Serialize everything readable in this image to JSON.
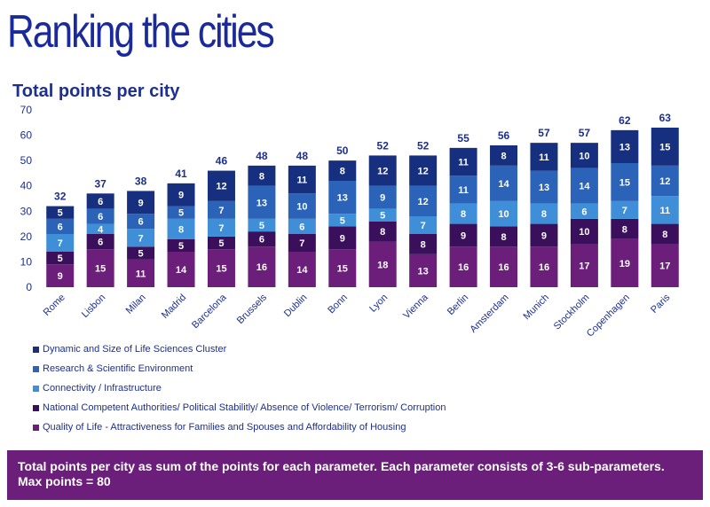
{
  "page": {
    "title": "Ranking the cities"
  },
  "chart_data": {
    "type": "bar",
    "stacked": true,
    "title": "Total points per city",
    "xlabel": "",
    "ylabel": "",
    "ylim": [
      0,
      70
    ],
    "yticks": [
      0,
      10,
      20,
      30,
      40,
      50,
      60,
      70
    ],
    "grid": false,
    "legend_position": "bottom-left",
    "categories": [
      "Rome",
      "Lisbon",
      "Milan",
      "Madrid",
      "Barcelona",
      "Brussels",
      "Dublin",
      "Bonn",
      "Lyon",
      "Vienna",
      "Berlin",
      "Amsterdam",
      "Munich",
      "Stockholm",
      "Copenhagen",
      "Paris"
    ],
    "totals": [
      32,
      37,
      38,
      41,
      46,
      48,
      48,
      50,
      52,
      52,
      55,
      56,
      57,
      57,
      62,
      63
    ],
    "series": [
      {
        "name": "Quality of Life - Attractiveness for Families and Spouses and Affordability of Housing",
        "color": "#6b1f7a",
        "values": [
          9,
          15,
          11,
          14,
          15,
          16,
          14,
          15,
          18,
          13,
          16,
          16,
          16,
          17,
          19,
          17
        ]
      },
      {
        "name": "National Competent Authorities/ Political Stabilitly/ Absence of Violence/ Terrorism/ Corruption",
        "color": "#3a0f5c",
        "values": [
          5,
          6,
          5,
          5,
          5,
          6,
          7,
          9,
          8,
          8,
          9,
          8,
          9,
          10,
          8,
          8
        ]
      },
      {
        "name": "Connectivity / Infrastructure",
        "color": "#3f8fd8",
        "values": [
          7,
          4,
          7,
          8,
          7,
          5,
          6,
          5,
          5,
          7,
          8,
          10,
          8,
          6,
          7,
          11
        ]
      },
      {
        "name": "Research & Scientific Environment",
        "color": "#2a63b8",
        "values": [
          6,
          6,
          6,
          5,
          7,
          13,
          10,
          13,
          9,
          12,
          11,
          14,
          13,
          14,
          15,
          12
        ]
      },
      {
        "name": "Dynamic and Size of Life Sciences Cluster",
        "color": "#16307f",
        "values": [
          5,
          6,
          9,
          9,
          12,
          8,
          11,
          8,
          12,
          12,
          11,
          8,
          11,
          10,
          13,
          15
        ]
      }
    ]
  },
  "legend": {
    "items": [
      {
        "label": "Dynamic and Size of Life Sciences Cluster",
        "color": "#16307f"
      },
      {
        "label": "Research & Scientific Environment",
        "color": "#2a63b8"
      },
      {
        "label": "Connectivity / Infrastructure",
        "color": "#3f8fd8"
      },
      {
        "label": "National Competent Authorities/ Political Stabilitly/ Absence of Violence/ Terrorism/ Corruption",
        "color": "#3a0f5c"
      },
      {
        "label": "Quality of Life - Attractiveness for Families and Spouses and Affordability of Housing",
        "color": "#6b1f7a"
      }
    ]
  },
  "footer": {
    "line1": "Total points per city as sum of the points for each parameter. Each parameter consists of 3-6 sub-parameters.",
    "line2": "Max points = 80"
  }
}
